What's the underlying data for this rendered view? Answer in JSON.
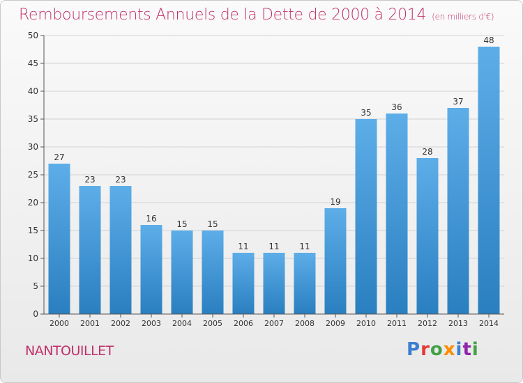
{
  "header": {
    "title": "Remboursements Annuels de la Dette de 2000 à 2014",
    "subtitle": "(en milliers d'€)"
  },
  "footer": {
    "city": "NANTOUILLET",
    "logo_text": "Proxiti",
    "logo_colors": [
      "#3a7fd0",
      "#e53935",
      "#43a047",
      "#fb8c00",
      "#3a7fd0",
      "#8e24aa",
      "#43a047"
    ]
  },
  "chart_data": {
    "type": "bar",
    "categories": [
      "2000",
      "2001",
      "2002",
      "2003",
      "2004",
      "2005",
      "2006",
      "2007",
      "2008",
      "2009",
      "2010",
      "2011",
      "2012",
      "2013",
      "2014"
    ],
    "values": [
      27,
      23,
      23,
      16,
      15,
      15,
      11,
      11,
      11,
      19,
      35,
      36,
      28,
      37,
      48
    ],
    "title": "Remboursements Annuels de la Dette de 2000 à 2014",
    "xlabel": "",
    "ylabel": "",
    "ylim": [
      0,
      50
    ],
    "yticks": [
      0,
      5,
      10,
      15,
      20,
      25,
      30,
      35,
      40,
      45,
      50
    ],
    "grid": true,
    "bar_color_top": "#5dade8",
    "bar_color_bottom": "#2a7fc0"
  }
}
